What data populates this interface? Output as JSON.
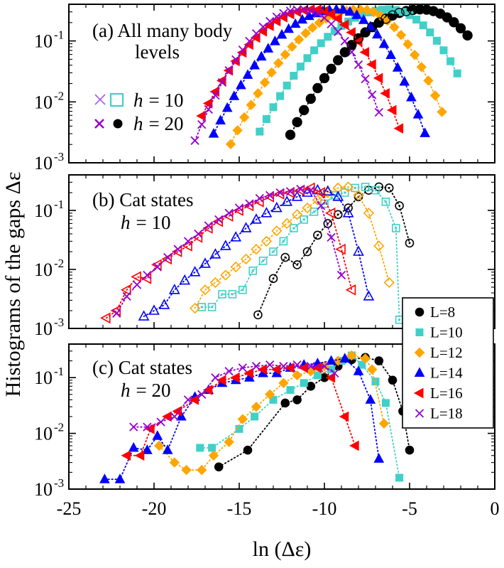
{
  "chart_data": {
    "type": "scatter",
    "ylabel": "Histograms of the gaps Δε",
    "xlabel": "ln (Δε)",
    "xlim": [
      -25,
      0
    ],
    "ylim": [
      0.001,
      0.4
    ],
    "yscale": "log",
    "x_ticks": [
      -25,
      -20,
      -15,
      -10,
      -5,
      0
    ],
    "x_tick_labels": [
      "-25",
      "-20",
      "-15",
      "-10",
      "-5",
      "0"
    ],
    "y_ticks": [
      0.001,
      0.01,
      0.1
    ],
    "y_tick_base": "10",
    "y_tick_exps": [
      "-3",
      "-2",
      "-1"
    ],
    "colors": {
      "L8": "#000000",
      "L10": "#40d0c8",
      "L12": "#ffa500",
      "L14": "#0000ff",
      "L16": "#ff0000",
      "L18": "#9400d3"
    },
    "legend": {
      "placement": "right, spanning panels (b) and (c)",
      "entries": [
        "L=8",
        "L=10",
        "L=12",
        "L=14",
        "L=16",
        "L=18"
      ]
    },
    "panels": [
      {
        "id": "a",
        "annotation_line1": "(a) All many body",
        "annotation_line2": "levels",
        "key": {
          "h10": "h = 10",
          "h20": "h = 20",
          "h_symbol": "h",
          "h10_value": "= 10",
          "h20_value": "= 20"
        },
        "series": [
          {
            "name": "L=8",
            "L": 8,
            "peak": -4.3,
            "left": 0.4,
            "right": 0.52,
            "xmin": -12.0,
            "xmax": -1.5,
            "step": 0.4
          },
          {
            "name": "L=10",
            "L": 10,
            "peak": -6.2,
            "left": 0.4,
            "right": 0.55,
            "xmin": -13.8,
            "xmax": -2.1,
            "step": 0.4
          },
          {
            "name": "L=12",
            "L": 12,
            "peak": -7.9,
            "left": 0.42,
            "right": 0.58,
            "xmin": -15.5,
            "xmax": -2.8,
            "step": 0.4
          },
          {
            "name": "L=14",
            "L": 14,
            "peak": -9.2,
            "left": 0.42,
            "right": 0.6,
            "xmin": -16.5,
            "xmax": -3.8,
            "step": 0.4
          },
          {
            "name": "L=16",
            "L": 16,
            "peak": -10.6,
            "left": 0.43,
            "right": 0.6,
            "xmin": -17.2,
            "xmax": -5.5,
            "step": 0.4
          },
          {
            "name": "L=18",
            "L": 18,
            "peak": -11.3,
            "left": 0.5,
            "right": 0.62,
            "xmin": -17.6,
            "xmax": -6.5,
            "step": 0.4
          }
        ]
      },
      {
        "id": "b",
        "annotation_line1": "(b) Cat states",
        "annotation_h": "h",
        "annotation_value": "= 10",
        "series": [
          {
            "name": "L=8",
            "L": 8,
            "x": [
              -13.9,
              -13.0,
              -12.3,
              -11.6,
              -11.0,
              -10.4,
              -9.8,
              -9.2,
              -8.6,
              -8.0,
              -7.4,
              -6.8,
              -6.2,
              -5.6,
              -5.0
            ],
            "y": [
              0.0017,
              0.007,
              0.016,
              0.012,
              0.02,
              0.038,
              0.06,
              0.085,
              0.11,
              0.17,
              0.22,
              0.25,
              0.24,
              0.12,
              0.028
            ]
          },
          {
            "name": "L=10",
            "L": 10,
            "x": [
              -17.2,
              -16.6,
              -16.0,
              -15.4,
              -14.8,
              -14.2,
              -13.6,
              -13.0,
              -12.4,
              -11.8,
              -11.2,
              -10.6,
              -10.0,
              -9.4,
              -8.8,
              -8.2,
              -7.6,
              -7.0,
              -6.4,
              -5.8,
              -5.6
            ],
            "y": [
              0.0023,
              0.0023,
              0.0038,
              0.0038,
              0.0045,
              0.0095,
              0.014,
              0.02,
              0.03,
              0.05,
              0.07,
              0.095,
              0.13,
              0.18,
              0.2,
              0.24,
              0.25,
              0.22,
              0.14,
              0.05,
              0.0014
            ]
          },
          {
            "name": "L=12",
            "L": 12,
            "x": [
              -17.6,
              -17.0,
              -16.4,
              -15.8,
              -15.2,
              -14.6,
              -14.0,
              -13.4,
              -12.8,
              -12.2,
              -11.6,
              -11.0,
              -10.4,
              -9.8,
              -9.2,
              -8.6,
              -8.0,
              -7.4,
              -6.8,
              -6.2
            ],
            "y": [
              0.0022,
              0.0045,
              0.006,
              0.008,
              0.011,
              0.015,
              0.022,
              0.03,
              0.045,
              0.06,
              0.085,
              0.11,
              0.15,
              0.2,
              0.24,
              0.25,
              0.18,
              0.09,
              0.025,
              0.006
            ]
          },
          {
            "name": "L=14",
            "L": 14,
            "x": [
              -20.6,
              -20.0,
              -19.4,
              -18.8,
              -18.2,
              -17.6,
              -17.0,
              -16.4,
              -15.8,
              -15.2,
              -14.6,
              -14.0,
              -13.4,
              -12.8,
              -12.2,
              -11.6,
              -11.0,
              -10.4,
              -9.8,
              -9.2,
              -8.6,
              -8.0,
              -7.4
            ],
            "y": [
              0.0016,
              0.002,
              0.0025,
              0.0045,
              0.0065,
              0.009,
              0.0125,
              0.018,
              0.025,
              0.035,
              0.05,
              0.07,
              0.09,
              0.11,
              0.14,
              0.17,
              0.2,
              0.22,
              0.21,
              0.17,
              0.09,
              0.02,
              0.0035
            ]
          },
          {
            "name": "L=16",
            "L": 16,
            "x": [
              -22.8,
              -22.2,
              -21.6,
              -21.0,
              -20.4,
              -19.8,
              -19.2,
              -18.6,
              -18.0,
              -17.4,
              -16.8,
              -16.2,
              -15.6,
              -15.0,
              -14.4,
              -13.8,
              -13.2,
              -12.6,
              -12.0,
              -11.4,
              -10.8,
              -10.2,
              -9.6,
              -9.0,
              -8.4
            ],
            "y": [
              0.0015,
              0.002,
              0.0045,
              0.0075,
              0.007,
              0.012,
              0.015,
              0.02,
              0.025,
              0.035,
              0.05,
              0.065,
              0.08,
              0.1,
              0.12,
              0.14,
              0.17,
              0.19,
              0.2,
              0.22,
              0.24,
              0.2,
              0.09,
              0.022,
              0.0045
            ]
          },
          {
            "name": "L=18",
            "L": 18,
            "x": [
              -22.2,
              -21.6,
              -21.0,
              -20.4,
              -19.8,
              -19.2,
              -18.6,
              -18.0,
              -17.4,
              -16.8,
              -16.2,
              -15.6,
              -15.0,
              -14.4,
              -13.8,
              -13.2,
              -12.6,
              -12.0,
              -11.4,
              -10.8,
              -10.2,
              -9.6,
              -9.0
            ],
            "y": [
              0.0018,
              0.0035,
              0.0055,
              0.008,
              0.011,
              0.016,
              0.022,
              0.03,
              0.04,
              0.055,
              0.07,
              0.09,
              0.11,
              0.13,
              0.16,
              0.18,
              0.2,
              0.21,
              0.23,
              0.22,
              0.12,
              0.035,
              0.008
            ]
          }
        ]
      },
      {
        "id": "c",
        "annotation_line1": "(c) Cat states",
        "annotation_h": "h",
        "annotation_value": "= 20",
        "series": [
          {
            "name": "L=8",
            "L": 8,
            "x": [
              -16.2,
              -14.5,
              -12.3,
              -11.6,
              -10.8,
              -10.0,
              -9.2,
              -8.4,
              -7.6,
              -6.8,
              -6.0,
              -5.4,
              -5.0
            ],
            "y": [
              0.0025,
              0.005,
              0.035,
              0.04,
              0.07,
              0.1,
              0.16,
              0.21,
              0.23,
              0.2,
              0.09,
              0.025,
              0.005
            ]
          },
          {
            "name": "L=10",
            "L": 10,
            "x": [
              -17.3,
              -16.6,
              -15.0,
              -14.1,
              -13.0,
              -12.0,
              -11.2,
              -10.4,
              -9.6,
              -9.0,
              -8.4,
              -7.8,
              -7.0,
              -6.4,
              -5.6
            ],
            "y": [
              0.0055,
              0.0055,
              0.012,
              0.02,
              0.04,
              0.06,
              0.08,
              0.11,
              0.14,
              0.2,
              0.25,
              0.17,
              0.085,
              0.035,
              0.0016
            ]
          },
          {
            "name": "L=12",
            "L": 12,
            "x": [
              -19.7,
              -18.8,
              -18.1,
              -17.2,
              -16.5,
              -15.6,
              -14.8,
              -14.0,
              -13.2,
              -12.4,
              -11.6,
              -10.8,
              -10.0,
              -9.2,
              -8.4,
              -7.6,
              -7.2,
              -6.5
            ],
            "y": [
              0.006,
              0.003,
              0.0022,
              0.0022,
              0.004,
              0.007,
              0.018,
              0.03,
              0.05,
              0.08,
              0.11,
              0.13,
              0.16,
              0.2,
              0.25,
              0.22,
              0.14,
              0.015
            ]
          },
          {
            "name": "L=14",
            "L": 14,
            "x": [
              -22.9,
              -22.0,
              -21.2,
              -20.4,
              -19.8,
              -19.2,
              -18.4,
              -17.6,
              -16.8,
              -16.0,
              -15.2,
              -14.4,
              -13.6,
              -12.8,
              -12.0,
              -11.2,
              -10.4,
              -9.6,
              -8.8,
              -8.0,
              -7.3,
              -6.8
            ],
            "y": [
              0.0015,
              0.0015,
              0.0055,
              0.005,
              0.009,
              0.005,
              0.02,
              0.045,
              0.06,
              0.08,
              0.09,
              0.1,
              0.12,
              0.12,
              0.15,
              0.17,
              0.18,
              0.2,
              0.22,
              0.13,
              0.04,
              0.0035
            ]
          },
          {
            "name": "L=16",
            "L": 16,
            "x": [
              -21.6,
              -20.8,
              -20.2,
              -19.2,
              -18.6,
              -17.6,
              -16.8,
              -16.0,
              -15.2,
              -14.4,
              -13.6,
              -12.8,
              -12.0,
              -11.2,
              -10.4,
              -9.6,
              -8.8,
              -8.2
            ],
            "y": [
              0.004,
              0.004,
              0.012,
              0.02,
              0.025,
              0.04,
              0.06,
              0.09,
              0.1,
              0.12,
              0.14,
              0.14,
              0.15,
              0.15,
              0.15,
              0.1,
              0.02,
              0.006
            ]
          },
          {
            "name": "L=18",
            "L": 18,
            "x": [
              -21.2,
              -20.4,
              -19.6,
              -18.8,
              -18.0,
              -17.2,
              -16.4,
              -15.6,
              -14.8,
              -14.0,
              -13.2,
              -12.4,
              -11.6,
              -10.8,
              -10.0,
              -9.4
            ],
            "y": [
              0.013,
              0.013,
              0.016,
              0.02,
              0.04,
              0.05,
              0.1,
              0.13,
              0.15,
              0.16,
              0.17,
              0.16,
              0.17,
              0.16,
              0.16,
              0.12
            ]
          }
        ]
      }
    ]
  }
}
